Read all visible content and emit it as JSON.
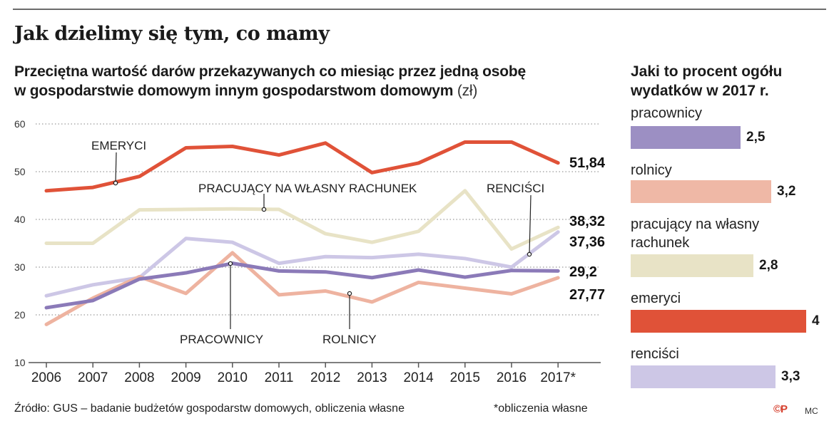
{
  "header": {
    "title": "Jak dzielimy się tym, co mamy",
    "subtitle_line1": "Przeciętna wartość darów przekazywanych co miesiąc przez jedną osobę",
    "subtitle_line2": "w gospodarstwie domowym innym gospodarstwom domowym",
    "subtitle_unit": "(zł)"
  },
  "chart_data": [
    {
      "type": "line",
      "x": [
        "2006",
        "2007",
        "2008",
        "2009",
        "2010",
        "2011",
        "2012",
        "2013",
        "2014",
        "2015",
        "2016",
        "2017*"
      ],
      "ylim": [
        10,
        60
      ],
      "yticks": [
        10,
        20,
        30,
        40,
        50,
        60
      ],
      "grid": true,
      "series": [
        {
          "name": "EMERYCI",
          "color": "#e05238",
          "values": [
            46,
            46.7,
            49,
            55,
            55.3,
            53.5,
            56,
            49.8,
            51.8,
            56.2,
            56.2,
            51.84
          ],
          "end_label": "51,84"
        },
        {
          "name": "PRACUJĄCY NA WŁASNY RACHUNEK",
          "color": "#e8e3c6",
          "values": [
            35,
            35,
            42,
            42.1,
            42.2,
            42.1,
            37,
            35.2,
            37.5,
            46,
            33.8,
            38.32
          ],
          "end_label": "38,32"
        },
        {
          "name": "RENCIŚCI",
          "color": "#cdc7e6",
          "values": [
            24,
            26.3,
            27.8,
            36,
            35.2,
            30.8,
            32.2,
            32,
            32.7,
            31.8,
            30,
            37.36
          ],
          "end_label": "37,36"
        },
        {
          "name": "PRACOWNICY",
          "color": "#8b7ab8",
          "values": [
            21.5,
            23,
            27.5,
            28.8,
            30.8,
            29.2,
            29,
            27.8,
            29.4,
            27.9,
            29.3,
            29.2
          ],
          "end_label": "29,2"
        },
        {
          "name": "ROLNICY",
          "color": "#eeb3a0",
          "values": [
            18,
            23.5,
            28,
            24.5,
            33,
            24.2,
            25,
            22.7,
            26.8,
            25.6,
            24.4,
            27.77
          ],
          "end_label": "27,77"
        }
      ],
      "annotations": [
        "EMERYCI",
        "PRACUJĄCY NA WŁASNY RACHUNEK",
        "RENCIŚCI",
        "PRACOWNICY",
        "ROLNICY"
      ]
    },
    {
      "type": "bar",
      "title_line1": "Jaki to procent ogółu",
      "title_line2": "wydatków w 2017 r.",
      "categories": [
        "pracownicy",
        "rolnicy",
        "pracujący na własny rachunek",
        "emeryci",
        "renciści"
      ],
      "category_labels": [
        [
          "pracownicy"
        ],
        [
          "rolnicy"
        ],
        [
          "pracujący na własny",
          "rachunek"
        ],
        [
          "emeryci"
        ],
        [
          "renciści"
        ]
      ],
      "values": [
        2.5,
        3.2,
        2.8,
        4,
        3.3
      ],
      "value_labels": [
        "2,5",
        "3,2",
        "2,8",
        "4",
        "3,3"
      ],
      "colors": [
        "#9c8fc3",
        "#efb8a6",
        "#e8e3c6",
        "#e05238",
        "#cdc7e6"
      ]
    }
  ],
  "footer": {
    "source": "Źródło: GUS – badanie budżetów gospodarstw domowych, obliczenia własne",
    "note": "*obliczenia własne",
    "logo": "©P",
    "credit": "MC"
  }
}
